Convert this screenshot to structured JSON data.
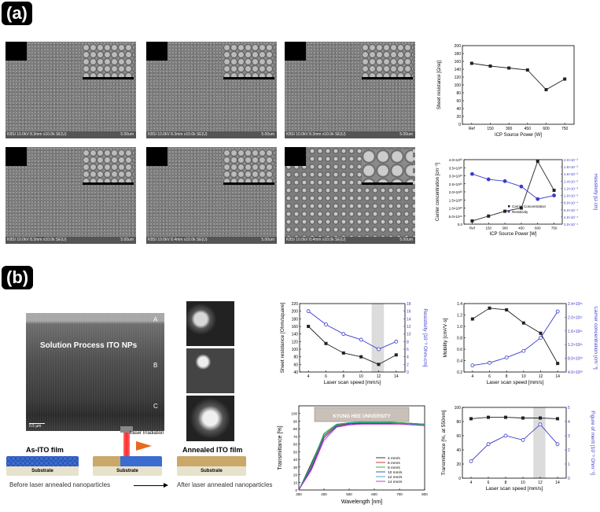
{
  "panel_a": {
    "label": "(a)",
    "sem_images": [
      {
        "footer": "K8SI 10.0kV 8.3mm x10.0k SE(U)",
        "scale": "5.00um"
      },
      {
        "footer": "K8SI 10.0kV 8.3mm x10.0k SE(U)",
        "scale": "5.00um"
      },
      {
        "footer": "K8SI 10.0kV 8.3mm x10.0k SE(U)",
        "scale": "5.00um"
      },
      {
        "footer": "K8SI 10.0kV 8.3mm x10.0k SE(U)",
        "scale": "5.00um"
      },
      {
        "footer": "K8SI 10.0kV 8.4mm x10.0k SE(U)",
        "scale": "5.00um"
      },
      {
        "footer": "K8SI 10.0kV 8.4mm x10.0k SE(U)",
        "scale": "5.00um"
      }
    ]
  },
  "panel_b": {
    "label": "(b)",
    "cross_section": {
      "title": "Solution Process ITO NPs",
      "marks": [
        "A",
        "B",
        "C"
      ],
      "scalebar": "0.5 µm"
    },
    "schematic": {
      "as_film": "As-ITO film",
      "substrate": "Substrate",
      "laser": "Laser Irradiation",
      "annealed": "Annealed ITO film",
      "before": "Before laser annealed nanoparticles",
      "after": "After laser annealed nanoparticles"
    },
    "legend_image_text": "KYUNG HEE UNIVERSITY"
  },
  "colors": {
    "black_series": "#222222",
    "blue_series": "#3a3acc",
    "highlight": "#dcdcdc"
  },
  "chart_data": [
    {
      "id": "a1",
      "type": "line",
      "categories": [
        "Ref",
        "150",
        "300",
        "450",
        "600",
        "750"
      ],
      "series": [
        {
          "values": [
            155,
            148,
            143,
            138,
            88,
            115
          ]
        }
      ],
      "xlabel": "ICP Source Power [W]",
      "ylabel": "Sheet resistance [Ω/sq]",
      "ylim": [
        0,
        200
      ],
      "yticks": [
        "0",
        "20",
        "40",
        "60",
        "80",
        "100",
        "120",
        "140",
        "160",
        "180",
        "200"
      ]
    },
    {
      "id": "a2",
      "type": "line",
      "categories": [
        "Ref",
        "150",
        "300",
        "450",
        "600",
        "750"
      ],
      "series": [
        {
          "name": "Carrier Concentration",
          "axis": "left",
          "values": [
            2e+19,
            5e+19,
            8e+19,
            1e+20,
            3.9e+20,
            2.1e+20
          ]
        },
        {
          "name": "Resistivity",
          "axis": "right",
          "values": [
            0.0016,
            0.00145,
            0.0014,
            0.00125,
            0.0009,
            0.001
          ]
        }
      ],
      "xlabel": "ICP Source Power [W]",
      "ylabel": "Carrier concentration [cm⁻³]",
      "y2label": "Resistivity [Ω·cm]",
      "ylim": [
        0,
        4e+20
      ],
      "y2lim": [
        0.0002,
        0.002
      ],
      "yticks": [
        "0.0",
        "5.0×10¹⁹",
        "1.0×10²⁰",
        "1.5×10²⁰",
        "2.0×10²⁰",
        "2.5×10²⁰",
        "3.0×10²⁰",
        "3.5×10²⁰",
        "4.0×10²⁰"
      ],
      "y2ticks": [
        "2.0×10⁻⁴",
        "4.0×10⁻⁴",
        "6.0×10⁻⁴",
        "8.0×10⁻⁴",
        "1.0×10⁻³",
        "1.2×10⁻³",
        "1.4×10⁻³",
        "1.6×10⁻³",
        "1.8×10⁻³",
        "2.0×10⁻³"
      ],
      "legend": "bottom-right"
    },
    {
      "id": "b1",
      "type": "line",
      "x": [
        4,
        6,
        8,
        10,
        12,
        14
      ],
      "series": [
        {
          "axis": "left",
          "values": [
            160,
            115,
            90,
            80,
            60,
            85
          ]
        },
        {
          "axis": "right",
          "values": [
            16,
            12.5,
            10,
            8.5,
            6,
            8
          ]
        }
      ],
      "xlabel": "Laser scan speed [mm/s]",
      "ylabel": "Sheet resistance [Ohm/square]",
      "y2label": "Resistivity [10⁻³ Ohm-cm]",
      "xlim": [
        3,
        15
      ],
      "ylim": [
        40,
        220
      ],
      "y2lim": [
        0,
        18
      ],
      "xticks": [
        "4",
        "6",
        "8",
        "10",
        "12",
        "14"
      ],
      "yticks": [
        "40",
        "60",
        "80",
        "100",
        "120",
        "140",
        "160",
        "180",
        "200",
        "220"
      ],
      "y2ticks": [
        "0",
        "2",
        "4",
        "6",
        "8",
        "10",
        "12",
        "14",
        "16",
        "18"
      ],
      "highlight_x": [
        11.2,
        12.6
      ]
    },
    {
      "id": "b2",
      "type": "line",
      "x": [
        4,
        6,
        8,
        10,
        12,
        14
      ],
      "series": [
        {
          "axis": "left",
          "values": [
            1.13,
            1.32,
            1.29,
            1.06,
            0.88,
            0.35
          ]
        },
        {
          "axis": "right",
          "values": [
            2.5e+20,
            3.5e+20,
            5.5e+20,
            8e+20,
            1.3e+21,
            2.3e+21
          ]
        }
      ],
      "xlabel": "Laser scan speed [mm/s]",
      "ylabel": "Mobility [cm²/V·s]",
      "y2label": "Carrier concentration [cm⁻³]",
      "xlim": [
        3,
        15
      ],
      "ylim": [
        0.2,
        1.4
      ],
      "y2lim": [
        0,
        2.6e+21
      ],
      "xticks": [
        "4",
        "6",
        "8",
        "10",
        "12",
        "14"
      ],
      "yticks": [
        "0.2",
        "0.4",
        "0.6",
        "0.8",
        "1.0",
        "1.2",
        "1.4"
      ],
      "y2ticks": [
        "4.0×10²⁰",
        "8.0×10²⁰",
        "1.2×10²¹",
        "1.6×10²¹",
        "2.0×10²¹",
        "2.4×10²¹"
      ]
    },
    {
      "id": "b3",
      "type": "line",
      "x": [
        300,
        350,
        400,
        450,
        500,
        550,
        600,
        650,
        700,
        750,
        800
      ],
      "series": [
        {
          "name": "4 mm/s",
          "values": [
            0,
            35,
            72,
            85,
            88,
            88,
            88,
            88,
            88,
            87,
            86
          ]
        },
        {
          "name": "6 mm/s",
          "values": [
            0,
            30,
            70,
            84,
            87,
            87,
            87,
            87,
            87,
            86,
            85
          ]
        },
        {
          "name": "8 mm/s",
          "values": [
            0,
            33,
            74,
            86,
            88,
            89,
            89,
            89,
            88,
            87,
            86
          ]
        },
        {
          "name": "10 mm/s",
          "values": [
            0,
            28,
            68,
            83,
            86,
            87,
            87,
            87,
            87,
            86,
            85
          ]
        },
        {
          "name": "12 mm/s",
          "values": [
            0,
            32,
            72,
            85,
            88,
            88,
            88,
            88,
            87,
            86,
            85
          ]
        },
        {
          "name": "14 mm/s",
          "values": [
            0,
            26,
            65,
            82,
            85,
            86,
            86,
            86,
            86,
            85,
            84
          ]
        }
      ],
      "xlabel": "Wavelength [nm]",
      "ylabel": "Transmittance [%]",
      "xlim": [
        300,
        800
      ],
      "ylim": [
        0,
        110
      ],
      "xticks": [
        "300",
        "400",
        "500",
        "600",
        "700",
        "800"
      ],
      "yticks": [
        "0",
        "10",
        "20",
        "30",
        "40",
        "50",
        "60",
        "70",
        "80",
        "90",
        "100"
      ],
      "legend": "bottom-right",
      "series_colors": [
        "#222222",
        "#cc2222",
        "#22aa22",
        "#2244cc",
        "#22aaaa",
        "#cc22cc"
      ]
    },
    {
      "id": "b4",
      "type": "line",
      "x": [
        4,
        6,
        8,
        10,
        12,
        14
      ],
      "series": [
        {
          "axis": "left",
          "values": [
            84,
            86,
            86,
            85,
            85,
            84
          ]
        },
        {
          "axis": "right",
          "values": [
            1.2,
            2.4,
            3.0,
            2.7,
            3.8,
            2.4
          ]
        }
      ],
      "xlabel": "Laser scan speed [mm/s]",
      "ylabel": "Transmittance [%, at 550nm]",
      "y2label": "Figure of merit [10⁻³ Ohm⁻¹]",
      "xlim": [
        3,
        15
      ],
      "ylim": [
        0,
        100
      ],
      "y2lim": [
        0,
        5
      ],
      "xticks": [
        "4",
        "6",
        "8",
        "10",
        "12",
        "14"
      ],
      "yticks": [
        "0",
        "20",
        "40",
        "60",
        "80",
        "100"
      ],
      "y2ticks": [
        "0",
        "1",
        "2",
        "3",
        "4",
        "5"
      ],
      "highlight_x": [
        11.2,
        12.6
      ]
    }
  ]
}
